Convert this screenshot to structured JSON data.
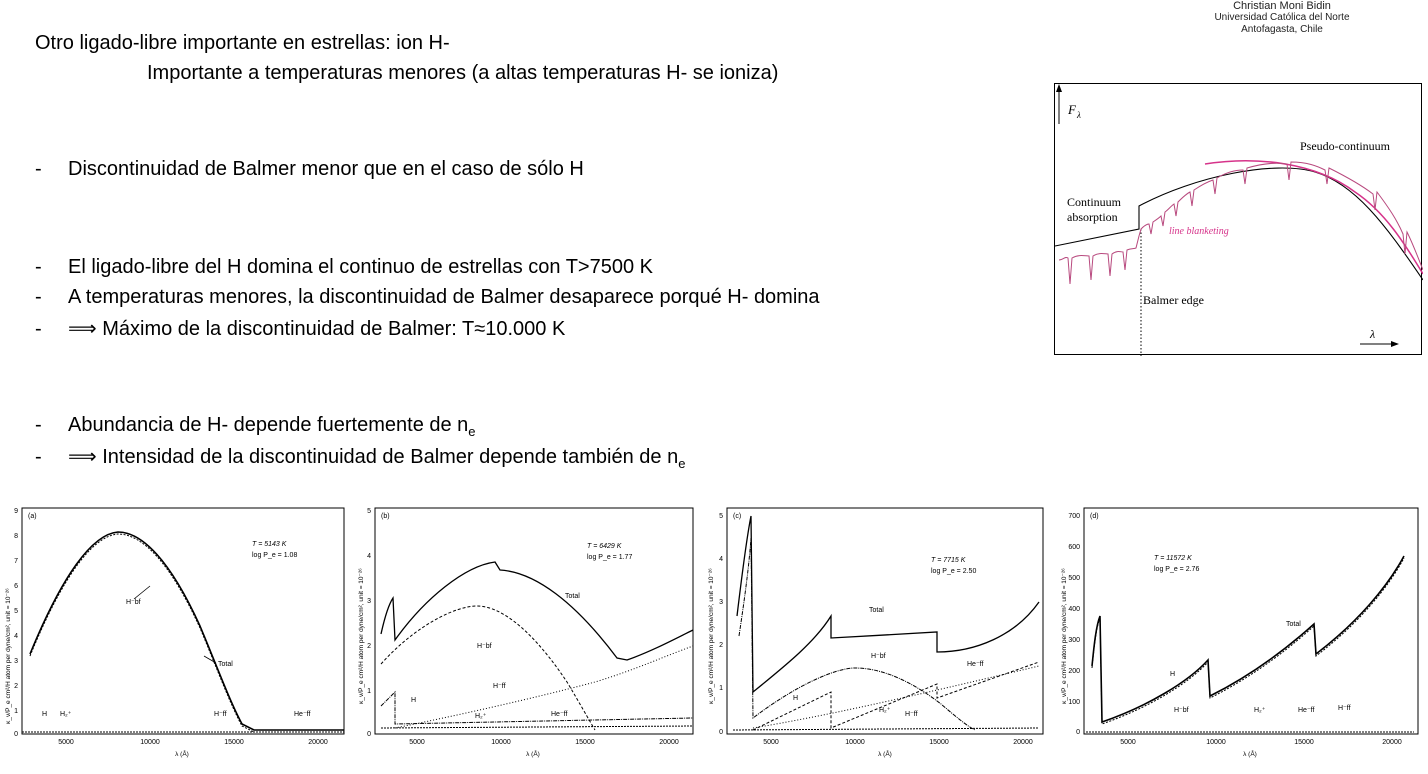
{
  "credit": {
    "name": "Christian Moni Bidin",
    "university": "Universidad Católica del Norte",
    "city": "Antofagasta, Chile"
  },
  "heading": {
    "line1": "Otro ligado-libre importante en estrellas: ion H-",
    "line2": "Importante a temperaturas menores (a altas temperaturas H- se ioniza)"
  },
  "bullets": {
    "dash": "-",
    "b1": "Discontinuidad de Balmer menor que en el caso de sólo H",
    "b2": "El ligado-libre del H domina el continuo de estrellas con T>7500 K",
    "b3": "A temperaturas menores, la discontinuidad de Balmer desaparece porqué H- domina",
    "b4": "⟹ Máximo de la discontinuidad de Balmer: T≈10.000 K",
    "b5_main": "Abundancia de H- depende fuertemente de n",
    "b5_sub": "e",
    "b6_main": "⟹ Intensidad de la discontinuidad de Balmer depende también de n",
    "b6_sub": "e"
  },
  "inset": {
    "ylabel": "F",
    "ylabel_sub": "λ",
    "xlabel": "λ",
    "pseudo": "Pseudo-continuum",
    "cont1": "Continuum",
    "cont2": "absorption",
    "blanketing": "line blanketing",
    "edge": "Balmer edge",
    "pink": "#d6338a"
  },
  "plots": {
    "common": {
      "xlabel": "λ (Å)",
      "ylabel": "κ_ν/P_e cm²/H atom per dyne/cm², unit = 10⁻²⁶",
      "xticks": [
        "5000",
        "10000",
        "15000",
        "20000"
      ]
    },
    "a": {
      "panel": "(a)",
      "temp": "T = 5143 K",
      "logpe": "log P_e = 1.08",
      "yticks": [
        "9",
        "8",
        "7",
        "6",
        "5",
        "4",
        "3",
        "2",
        "1",
        "0"
      ],
      "labels": {
        "hbf": "H⁻bf",
        "total": "Total",
        "h": "H",
        "h2": "H₂⁺",
        "hff": "H⁻ff",
        "heff": "He⁻ff"
      }
    },
    "b": {
      "panel": "(b)",
      "temp": "T = 6429 K",
      "logpe": "log P_e = 1.77",
      "yticks": [
        "5",
        "4",
        "3",
        "2",
        "1",
        "0"
      ],
      "labels": {
        "total": "Total",
        "hbf": "H⁻bf",
        "h": "H",
        "hff": "H⁻ff",
        "h2": "H₂⁺",
        "heff": "He⁻ff"
      }
    },
    "c": {
      "panel": "(c)",
      "temp": "T = 7715 K",
      "logpe": "log P_e = 2.50",
      "yticks": [
        "5",
        "4",
        "3",
        "2",
        "1",
        "0"
      ],
      "labels": {
        "total": "Total",
        "hbf": "H⁻bf",
        "heff": "He⁻ff",
        "h": "H",
        "h2": "H₂⁺",
        "hff": "H⁻ff"
      }
    },
    "d": {
      "panel": "(d)",
      "temp": "T = 11572 K",
      "logpe": "log P_e = 2.76",
      "yticks": [
        "700",
        "600",
        "500",
        "400",
        "300",
        "200",
        "100",
        "0"
      ],
      "labels": {
        "total": "Total",
        "h": "H",
        "hbf": "H⁻bf",
        "h2": "H₂⁺",
        "heff": "He⁻ff",
        "hff": "H⁻ff"
      }
    }
  }
}
